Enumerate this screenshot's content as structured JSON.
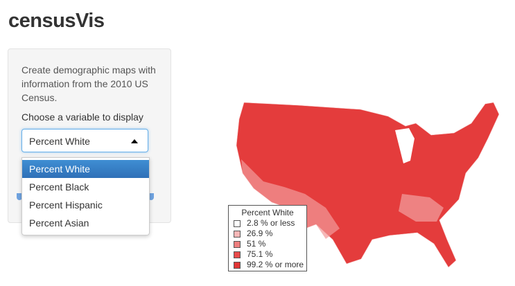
{
  "header": {
    "title": "censusVis"
  },
  "sidebar": {
    "help_text": "Create demographic maps with information from the 2010 US Census.",
    "select_label": "Choose a variable to display",
    "select_value": "Percent White",
    "options": [
      "Percent White",
      "Percent Black",
      "Percent Hispanic",
      "Percent Asian"
    ]
  },
  "map": {
    "legend": {
      "title": "Percent White",
      "items": [
        {
          "label": "2.8 % or less",
          "color": "#ffffff"
        },
        {
          "label": "26.9 %",
          "color": "#f6b6b6"
        },
        {
          "label": "51 %",
          "color": "#ee7f7f"
        },
        {
          "label": "75.1 %",
          "color": "#e84a4a"
        },
        {
          "label": "99.2 % or more",
          "color": "#e03535"
        }
      ]
    }
  }
}
